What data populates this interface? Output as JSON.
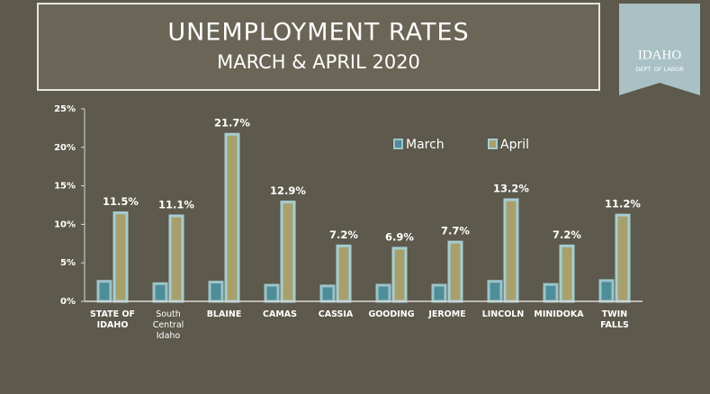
{
  "chart_data": {
    "type": "bar",
    "title": "UNEMPLOYMENT RATES",
    "subtitle": "MARCH & APRIL 2020",
    "logo": {
      "name": "IDAHO",
      "department": "DEPT. OF LABOR"
    },
    "categories": [
      "STATE OF IDAHO",
      "South Central Idaho",
      "BLAINE",
      "CAMAS",
      "CASSIA",
      "GOODING",
      "JEROME",
      "LINCOLN",
      "MINIDOKA",
      "TWIN FALLS"
    ],
    "series": [
      {
        "name": "March",
        "color": "#4e8e98",
        "values": [
          2.6,
          2.3,
          2.5,
          2.1,
          2.0,
          2.1,
          2.1,
          2.6,
          2.2,
          2.7
        ]
      },
      {
        "name": "April",
        "color": "#a8a06c",
        "values": [
          11.5,
          11.1,
          21.7,
          12.9,
          7.2,
          6.9,
          7.7,
          13.2,
          7.2,
          11.2
        ],
        "value_labels": [
          "11.5%",
          "11.1%",
          "21.7%",
          "12.9%",
          "7.2%",
          "6.9%",
          "7.7%",
          "13.2%",
          "7.2%",
          "11.2%"
        ]
      }
    ],
    "ylim": [
      0,
      25
    ],
    "yticks": [
      {
        "value": 0,
        "label": "0%"
      },
      {
        "value": 5,
        "label": "5%"
      },
      {
        "value": 10,
        "label": "10%"
      },
      {
        "value": 15,
        "label": "15%"
      },
      {
        "value": 20,
        "label": "20%"
      },
      {
        "value": 25,
        "label": "25%"
      }
    ],
    "grid": false,
    "legend": "top-right"
  }
}
